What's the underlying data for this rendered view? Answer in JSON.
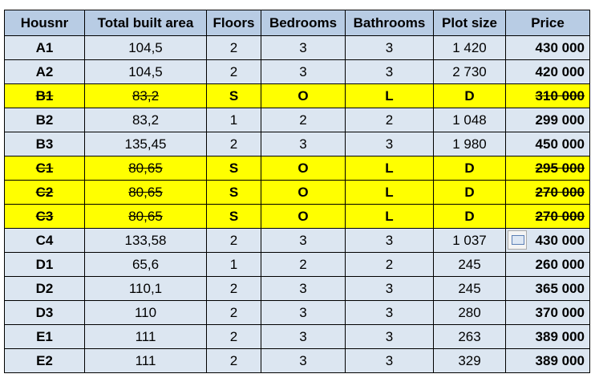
{
  "table": {
    "header": [
      "Housnr",
      "Total built area",
      "Floors",
      "Bedrooms",
      "Bathrooms",
      "Plot size",
      "Price"
    ],
    "rows": [
      [
        "A1",
        "104,5",
        "2",
        "3",
        "3",
        "1 420",
        "430 000"
      ],
      [
        "A2",
        "104,5",
        "2",
        "3",
        "3",
        "2 730",
        "420 000"
      ],
      [
        "B1",
        "83,2",
        "S",
        "O",
        "L",
        "D",
        "310 000"
      ],
      [
        "B2",
        "83,2",
        "1",
        "2",
        "2",
        "1 048",
        "299 000"
      ],
      [
        "B3",
        "135,45",
        "2",
        "3",
        "3",
        "1 980",
        "450 000"
      ],
      [
        "C1",
        "80,65",
        "S",
        "O",
        "L",
        "D",
        "295 000"
      ],
      [
        "C2",
        "80,65",
        "S",
        "O",
        "L",
        "D",
        "270 000"
      ],
      [
        "C3",
        "80,65",
        "S",
        "O",
        "L",
        "D",
        "270 000"
      ],
      [
        "C4",
        "133,58",
        "2",
        "3",
        "3",
        "1 037",
        "430 000"
      ],
      [
        "D1",
        "65,6",
        "1",
        "2",
        "2",
        "245",
        "260 000"
      ],
      [
        "D2",
        "110,1",
        "2",
        "3",
        "3",
        "245",
        "365 000"
      ],
      [
        "D3",
        "110",
        "2",
        "3",
        "3",
        "280",
        "370 000"
      ],
      [
        "E1",
        "111",
        "2",
        "3",
        "3",
        "263",
        "389 000"
      ],
      [
        "E2",
        "111",
        "2",
        "3",
        "3",
        "329",
        "389 000"
      ]
    ]
  }
}
